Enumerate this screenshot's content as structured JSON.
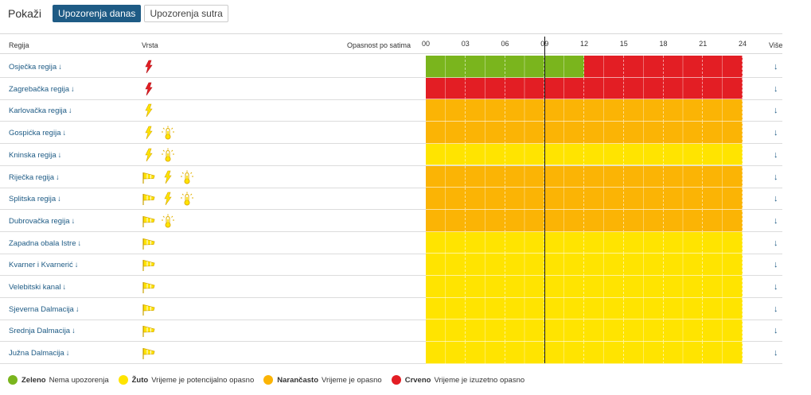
{
  "topbar": {
    "show_label": "Pokaži",
    "tabs": [
      {
        "label": "Upozorenja danas",
        "active": true
      },
      {
        "label": "Upozorenja sutra",
        "active": false
      }
    ]
  },
  "header": {
    "region": "Regija",
    "type": "Vrsta",
    "danger": "Opasnost po satima",
    "more": "Više",
    "hours": [
      "00",
      "03",
      "06",
      "09",
      "12",
      "15",
      "18",
      "21",
      "24"
    ]
  },
  "colors": {
    "green": "#7ab51d",
    "yellow": "#ffe400",
    "orange": "#fbb405",
    "red": "#e31e24",
    "link": "#1e5b85"
  },
  "regions": [
    {
      "name": "Osječka regija",
      "arrow": "↓",
      "icons": [
        "lightning-icon-red"
      ],
      "levels": [
        "green",
        "green",
        "green",
        "green",
        "red",
        "red",
        "red",
        "red"
      ]
    },
    {
      "name": "Zagrebačka regija",
      "arrow": "↓",
      "icons": [
        "lightning-icon-red"
      ],
      "levels": [
        "red",
        "red",
        "red",
        "red",
        "red",
        "red",
        "red",
        "red"
      ]
    },
    {
      "name": "Karlovačka regija",
      "arrow": "↓",
      "icons": [
        "lightning-icon-yellow"
      ],
      "levels": [
        "orange",
        "orange",
        "orange",
        "orange",
        "orange",
        "orange",
        "orange",
        "orange"
      ]
    },
    {
      "name": "Gospićka regija",
      "arrow": "↓",
      "icons": [
        "lightning-icon-yellow",
        "heat-thermometer-icon"
      ],
      "levels": [
        "orange",
        "orange",
        "orange",
        "orange",
        "orange",
        "orange",
        "orange",
        "orange"
      ]
    },
    {
      "name": "Kninska regija",
      "arrow": "↓",
      "icons": [
        "lightning-icon-yellow",
        "heat-thermometer-icon"
      ],
      "levels": [
        "yellow",
        "yellow",
        "yellow",
        "yellow",
        "yellow",
        "yellow",
        "yellow",
        "yellow"
      ]
    },
    {
      "name": "Riječka regija",
      "arrow": "↓",
      "icons": [
        "wind-flag-icon",
        "lightning-icon-yellow",
        "heat-thermometer-icon"
      ],
      "levels": [
        "orange",
        "orange",
        "orange",
        "orange",
        "orange",
        "orange",
        "orange",
        "orange"
      ]
    },
    {
      "name": "Splitska regija",
      "arrow": "↓",
      "icons": [
        "wind-flag-icon",
        "lightning-icon-yellow",
        "heat-thermometer-icon"
      ],
      "levels": [
        "orange",
        "orange",
        "orange",
        "orange",
        "orange",
        "orange",
        "orange",
        "orange"
      ]
    },
    {
      "name": "Dubrovačka regija",
      "arrow": "↓",
      "icons": [
        "wind-flag-icon",
        "heat-thermometer-icon"
      ],
      "levels": [
        "orange",
        "orange",
        "orange",
        "orange",
        "orange",
        "orange",
        "orange",
        "orange"
      ]
    },
    {
      "name": "Zapadna obala Istre",
      "arrow": "↓",
      "icons": [
        "wind-flag-icon"
      ],
      "levels": [
        "yellow",
        "yellow",
        "yellow",
        "yellow",
        "yellow",
        "yellow",
        "yellow",
        "yellow"
      ]
    },
    {
      "name": "Kvarner i Kvarnerić",
      "arrow": "↓",
      "icons": [
        "wind-flag-icon"
      ],
      "levels": [
        "yellow",
        "yellow",
        "yellow",
        "yellow",
        "yellow",
        "yellow",
        "yellow",
        "yellow"
      ]
    },
    {
      "name": "Velebitski kanal",
      "arrow": "↓",
      "icons": [
        "wind-flag-icon"
      ],
      "levels": [
        "yellow",
        "yellow",
        "yellow",
        "yellow",
        "yellow",
        "yellow",
        "yellow",
        "yellow"
      ]
    },
    {
      "name": "Sjeverna Dalmacija",
      "arrow": "↓",
      "icons": [
        "wind-flag-icon"
      ],
      "levels": [
        "yellow",
        "yellow",
        "yellow",
        "yellow",
        "yellow",
        "yellow",
        "yellow",
        "yellow"
      ]
    },
    {
      "name": "Srednja Dalmacija",
      "arrow": "↓",
      "icons": [
        "wind-flag-icon"
      ],
      "levels": [
        "yellow",
        "yellow",
        "yellow",
        "yellow",
        "yellow",
        "yellow",
        "yellow",
        "yellow"
      ]
    },
    {
      "name": "Južna Dalmacija",
      "arrow": "↓",
      "icons": [
        "wind-flag-icon"
      ],
      "levels": [
        "yellow",
        "yellow",
        "yellow",
        "yellow",
        "yellow",
        "yellow",
        "yellow",
        "yellow"
      ]
    }
  ],
  "current_time_marker": "09",
  "legend": [
    {
      "color_key": "green",
      "title": "Zeleno",
      "text": "Nema upozorenja"
    },
    {
      "color_key": "yellow",
      "title": "Žuto",
      "text": "Vrijeme je potencijalno opasno"
    },
    {
      "color_key": "orange",
      "title": "Narančasto",
      "text": "Vrijeme je opasno"
    },
    {
      "color_key": "red",
      "title": "Crveno",
      "text": "Vrijeme je izuzetno opasno"
    }
  ]
}
